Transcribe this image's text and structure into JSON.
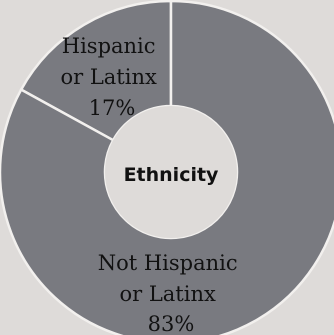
{
  "chart_data": {
    "type": "pie",
    "title": "Ethnicity",
    "categories": [
      "Hispanic or Latinx",
      "Not Hispanic or Latinx"
    ],
    "values": [
      17,
      83
    ],
    "unit": "%",
    "labels": [
      {
        "lines": [
          "Hispanic",
          "or Latinx",
          "17%"
        ]
      },
      {
        "lines": [
          "Not Hispanic",
          "or Latinx",
          "83%"
        ]
      }
    ],
    "colors": [
      "#797a80",
      "#797a80"
    ],
    "separator_color": "#f2f0ee",
    "hole_color": "#dedbd9",
    "legend": "none"
  }
}
